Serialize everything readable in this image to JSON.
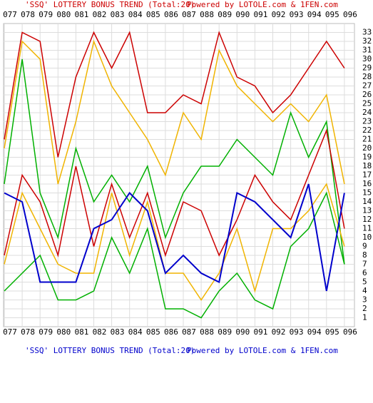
{
  "chart_data": {
    "type": "line",
    "title": "'SSQ' LOTTERY BONUS TREND (Total:20)",
    "subtitle": "Powered by LOTOLE.com & 1FEN.com",
    "categories": [
      "077",
      "078",
      "079",
      "080",
      "081",
      "082",
      "083",
      "084",
      "085",
      "086",
      "087",
      "088",
      "089",
      "090",
      "091",
      "092",
      "093",
      "094",
      "095",
      "096"
    ],
    "series": [
      {
        "color": "#cc0000",
        "values": [
          21,
          33,
          32,
          19,
          28,
          33,
          29,
          33,
          24,
          24,
          26,
          25,
          33,
          28,
          27,
          24,
          26,
          29,
          32,
          29
        ]
      },
      {
        "color": "#f0b400",
        "values": [
          20,
          32,
          30,
          16,
          23,
          32,
          27,
          24,
          21,
          17,
          24,
          21,
          31,
          27,
          25,
          23,
          25,
          23,
          26,
          16
        ]
      },
      {
        "color": "#00b000",
        "values": [
          16,
          30,
          15,
          10,
          20,
          14,
          17,
          14,
          18,
          10,
          15,
          18,
          18,
          21,
          19,
          17,
          24,
          19,
          23,
          7
        ]
      },
      {
        "color": "#cc0000",
        "values": [
          8,
          17,
          14,
          8,
          18,
          9,
          16,
          10,
          15,
          8,
          14,
          13,
          8,
          12,
          17,
          14,
          12,
          17,
          22,
          11
        ]
      },
      {
        "color": "#f0b400",
        "values": [
          7,
          15,
          11,
          7,
          6,
          6,
          15,
          8,
          14,
          6,
          6,
          3,
          6,
          11,
          4,
          11,
          11,
          13,
          16,
          9
        ]
      },
      {
        "color": "#00b000",
        "values": [
          4,
          6,
          8,
          3,
          3,
          4,
          10,
          6,
          11,
          2,
          2,
          1,
          4,
          6,
          3,
          2,
          9,
          11,
          15,
          7
        ]
      },
      {
        "color": "#0000cc",
        "values": [
          15,
          14,
          5,
          5,
          5,
          11,
          12,
          15,
          13,
          6,
          8,
          6,
          5,
          15,
          14,
          12,
          10,
          16,
          4,
          15
        ]
      }
    ],
    "ylim": [
      0,
      34
    ],
    "yticks": [
      1,
      2,
      3,
      4,
      5,
      6,
      7,
      8,
      9,
      10,
      11,
      12,
      13,
      14,
      15,
      16,
      17,
      18,
      19,
      20,
      21,
      22,
      23,
      24,
      25,
      26,
      27,
      28,
      29,
      30,
      31,
      32,
      33
    ],
    "grid": true
  }
}
